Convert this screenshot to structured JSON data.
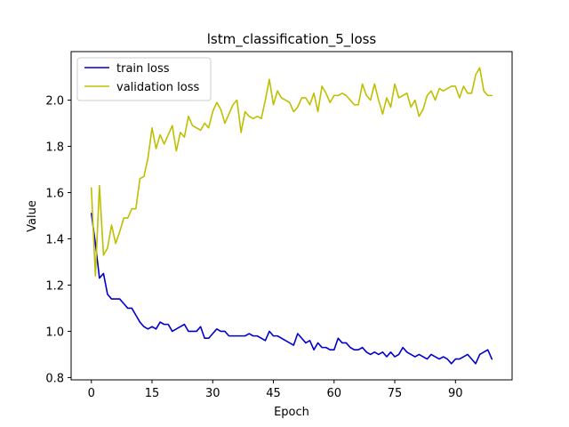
{
  "chart_data": {
    "type": "line",
    "title": "lstm_classification_5_loss",
    "xlabel": "Epoch",
    "ylabel": "Value",
    "xlim": [
      -5,
      104
    ],
    "ylim": [
      0.79,
      2.21
    ],
    "xticks": [
      0,
      15,
      30,
      45,
      60,
      75,
      90
    ],
    "yticks": [
      0.8,
      1.0,
      1.2,
      1.4,
      1.6,
      1.8,
      2.0
    ],
    "legend_position": "top-left",
    "grid": false,
    "series": [
      {
        "name": "train loss",
        "color": "#0000cc",
        "values": [
          1.51,
          1.38,
          1.23,
          1.25,
          1.16,
          1.14,
          1.14,
          1.14,
          1.12,
          1.1,
          1.1,
          1.07,
          1.04,
          1.02,
          1.01,
          1.02,
          1.01,
          1.04,
          1.03,
          1.03,
          1.0,
          1.01,
          1.02,
          1.03,
          1.0,
          1.0,
          1.0,
          1.02,
          0.97,
          0.97,
          0.99,
          1.01,
          1.0,
          1.0,
          0.98,
          0.98,
          0.98,
          0.98,
          0.98,
          0.99,
          0.98,
          0.98,
          0.97,
          0.96,
          1.0,
          0.98,
          0.98,
          0.97,
          0.96,
          0.95,
          0.94,
          0.99,
          0.97,
          0.95,
          0.96,
          0.92,
          0.95,
          0.93,
          0.93,
          0.92,
          0.92,
          0.97,
          0.95,
          0.95,
          0.93,
          0.92,
          0.92,
          0.93,
          0.91,
          0.9,
          0.91,
          0.9,
          0.91,
          0.89,
          0.91,
          0.89,
          0.9,
          0.93,
          0.91,
          0.9,
          0.89,
          0.9,
          0.89,
          0.88,
          0.9,
          0.89,
          0.88,
          0.89,
          0.88,
          0.86,
          0.88,
          0.88,
          0.89,
          0.9,
          0.88,
          0.86,
          0.9,
          0.91,
          0.92,
          0.88
        ]
      },
      {
        "name": "validation loss",
        "color": "#bfbf00",
        "values": [
          1.62,
          1.24,
          1.63,
          1.33,
          1.36,
          1.46,
          1.38,
          1.43,
          1.49,
          1.49,
          1.53,
          1.53,
          1.66,
          1.67,
          1.75,
          1.88,
          1.79,
          1.85,
          1.81,
          1.85,
          1.89,
          1.78,
          1.86,
          1.84,
          1.93,
          1.89,
          1.88,
          1.87,
          1.9,
          1.88,
          1.95,
          1.99,
          1.96,
          1.9,
          1.94,
          1.98,
          2.0,
          1.86,
          1.95,
          1.93,
          1.92,
          1.93,
          1.92,
          2.0,
          2.09,
          1.98,
          2.04,
          2.01,
          2.0,
          1.99,
          1.95,
          1.97,
          2.01,
          2.01,
          1.98,
          2.03,
          1.95,
          2.06,
          2.03,
          1.99,
          2.02,
          2.02,
          2.03,
          2.02,
          2.0,
          1.98,
          1.98,
          2.07,
          2.02,
          2.0,
          2.07,
          2.0,
          1.94,
          2.01,
          1.97,
          2.07,
          2.01,
          2.02,
          2.03,
          1.97,
          2.0,
          1.93,
          1.96,
          2.02,
          2.04,
          2.0,
          2.05,
          2.04,
          2.05,
          2.06,
          2.06,
          2.01,
          2.06,
          2.03,
          2.03,
          2.11,
          2.14,
          2.04,
          2.02,
          2.02
        ]
      }
    ]
  }
}
